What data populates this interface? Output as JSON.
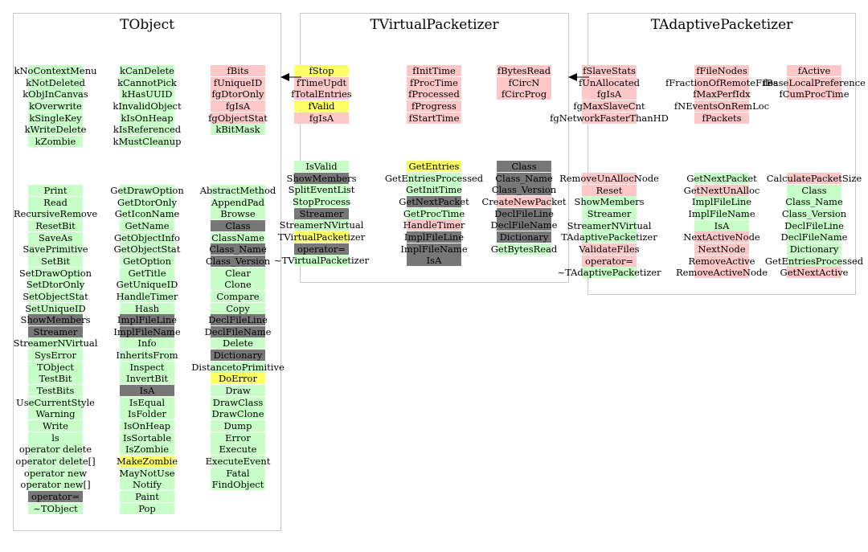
{
  "colors": {
    "fill-data": "#ffc8c8",
    "fill-enum": "#c8ffc8",
    "fill-highlight": "#ffff66",
    "fill-inherited": "#777777",
    "fill-none": "transparent"
  },
  "panels": [
    {
      "name": "tobject",
      "title": "TObject",
      "groups": [
        {
          "columns": [
            [
              {
                "t": "kNoContextMenu",
                "c": "fill-enum"
              },
              {
                "t": "kNotDeleted",
                "c": "fill-enum"
              },
              {
                "t": "kObjInCanvas",
                "c": "fill-enum"
              },
              {
                "t": "kOverwrite",
                "c": "fill-enum"
              },
              {
                "t": "kSingleKey",
                "c": "fill-enum"
              },
              {
                "t": "kWriteDelete",
                "c": "fill-enum"
              },
              {
                "t": "kZombie",
                "c": "fill-enum"
              }
            ],
            [
              {
                "t": "kCanDelete",
                "c": "fill-enum"
              },
              {
                "t": "kCannotPick",
                "c": "fill-enum"
              },
              {
                "t": "kHasUUID",
                "c": "fill-enum"
              },
              {
                "t": "kInvalidObject",
                "c": "fill-enum"
              },
              {
                "t": "kIsOnHeap",
                "c": "fill-enum"
              },
              {
                "t": "kIsReferenced",
                "c": "fill-enum"
              },
              {
                "t": "kMustCleanup",
                "c": "fill-enum"
              }
            ],
            [
              {
                "t": "fBits",
                "c": "fill-data"
              },
              {
                "t": "fUniqueID",
                "c": "fill-data"
              },
              {
                "t": "fgDtorOnly",
                "c": "fill-data"
              },
              {
                "t": "fgIsA",
                "c": "fill-data"
              },
              {
                "t": "fgObjectStat",
                "c": "fill-data"
              },
              {
                "t": "kBitMask",
                "c": "fill-enum"
              }
            ]
          ]
        },
        {
          "columns": [
            [
              {
                "t": "Print",
                "c": "fill-enum"
              },
              {
                "t": "Read",
                "c": "fill-enum"
              },
              {
                "t": "RecursiveRemove",
                "c": "fill-enum"
              },
              {
                "t": "ResetBit",
                "c": "fill-enum"
              },
              {
                "t": "SaveAs",
                "c": "fill-enum"
              },
              {
                "t": "SavePrimitive",
                "c": "fill-enum"
              },
              {
                "t": "SetBit",
                "c": "fill-enum"
              },
              {
                "t": "SetDrawOption",
                "c": "fill-enum"
              },
              {
                "t": "SetDtorOnly",
                "c": "fill-enum"
              },
              {
                "t": "SetObjectStat",
                "c": "fill-enum"
              },
              {
                "t": "SetUniqueID",
                "c": "fill-enum"
              },
              {
                "t": "ShowMembers",
                "c": "fill-inherited"
              },
              {
                "t": "Streamer",
                "c": "fill-inherited"
              },
              {
                "t": "StreamerNVirtual",
                "c": "fill-enum"
              },
              {
                "t": "SysError",
                "c": "fill-enum"
              },
              {
                "t": "TObject",
                "c": "fill-enum"
              },
              {
                "t": "TestBit",
                "c": "fill-enum"
              },
              {
                "t": "TestBits",
                "c": "fill-enum"
              },
              {
                "t": "UseCurrentStyle",
                "c": "fill-enum"
              },
              {
                "t": "Warning",
                "c": "fill-enum"
              },
              {
                "t": "Write",
                "c": "fill-enum"
              },
              {
                "t": "ls",
                "c": "fill-enum"
              },
              {
                "t": "operator delete",
                "c": "fill-enum"
              },
              {
                "t": "operator delete[]",
                "c": "fill-enum"
              },
              {
                "t": "operator new",
                "c": "fill-enum"
              },
              {
                "t": "operator new[]",
                "c": "fill-enum"
              },
              {
                "t": "operator=",
                "c": "fill-inherited"
              },
              {
                "t": "~TObject",
                "c": "fill-enum"
              }
            ],
            [
              {
                "t": "GetDrawOption",
                "c": "fill-enum"
              },
              {
                "t": "GetDtorOnly",
                "c": "fill-enum"
              },
              {
                "t": "GetIconName",
                "c": "fill-enum"
              },
              {
                "t": "GetName",
                "c": "fill-enum"
              },
              {
                "t": "GetObjectInfo",
                "c": "fill-enum"
              },
              {
                "t": "GetObjectStat",
                "c": "fill-enum"
              },
              {
                "t": "GetOption",
                "c": "fill-enum"
              },
              {
                "t": "GetTitle",
                "c": "fill-enum"
              },
              {
                "t": "GetUniqueID",
                "c": "fill-enum"
              },
              {
                "t": "HandleTimer",
                "c": "fill-enum"
              },
              {
                "t": "Hash",
                "c": "fill-enum"
              },
              {
                "t": "ImplFileLine",
                "c": "fill-inherited"
              },
              {
                "t": "ImplFileName",
                "c": "fill-inherited"
              },
              {
                "t": "Info",
                "c": "fill-enum"
              },
              {
                "t": "InheritsFrom",
                "c": "fill-enum"
              },
              {
                "t": "Inspect",
                "c": "fill-enum"
              },
              {
                "t": "InvertBit",
                "c": "fill-enum"
              },
              {
                "t": "IsA",
                "c": "fill-inherited"
              },
              {
                "t": "IsEqual",
                "c": "fill-enum"
              },
              {
                "t": "IsFolder",
                "c": "fill-enum"
              },
              {
                "t": "IsOnHeap",
                "c": "fill-enum"
              },
              {
                "t": "IsSortable",
                "c": "fill-enum"
              },
              {
                "t": "IsZombie",
                "c": "fill-enum"
              },
              {
                "t": "MakeZombie",
                "c": "fill-highlight"
              },
              {
                "t": "MayNotUse",
                "c": "fill-enum"
              },
              {
                "t": "Notify",
                "c": "fill-enum"
              },
              {
                "t": "Paint",
                "c": "fill-enum"
              },
              {
                "t": "Pop",
                "c": "fill-enum"
              }
            ],
            [
              {
                "t": "AbstractMethod",
                "c": "fill-enum"
              },
              {
                "t": "AppendPad",
                "c": "fill-enum"
              },
              {
                "t": "Browse",
                "c": "fill-enum"
              },
              {
                "t": "Class",
                "c": "fill-inherited"
              },
              {
                "t": "ClassName",
                "c": "fill-enum"
              },
              {
                "t": "Class_Name",
                "c": "fill-inherited"
              },
              {
                "t": "Class_Version",
                "c": "fill-inherited"
              },
              {
                "t": "Clear",
                "c": "fill-enum"
              },
              {
                "t": "Clone",
                "c": "fill-enum"
              },
              {
                "t": "Compare",
                "c": "fill-enum"
              },
              {
                "t": "Copy",
                "c": "fill-enum"
              },
              {
                "t": "DeclFileLine",
                "c": "fill-inherited"
              },
              {
                "t": "DeclFileName",
                "c": "fill-inherited"
              },
              {
                "t": "Delete",
                "c": "fill-enum"
              },
              {
                "t": "Dictionary",
                "c": "fill-inherited"
              },
              {
                "t": "DistancetoPrimitive",
                "c": "fill-enum"
              },
              {
                "t": "DoError",
                "c": "fill-highlight"
              },
              {
                "t": "Draw",
                "c": "fill-enum"
              },
              {
                "t": "DrawClass",
                "c": "fill-enum"
              },
              {
                "t": "DrawClone",
                "c": "fill-enum"
              },
              {
                "t": "Dump",
                "c": "fill-enum"
              },
              {
                "t": "Error",
                "c": "fill-enum"
              },
              {
                "t": "Execute",
                "c": "fill-enum"
              },
              {
                "t": "ExecuteEvent",
                "c": "fill-enum"
              },
              {
                "t": "Fatal",
                "c": "fill-enum"
              },
              {
                "t": "FindObject",
                "c": "fill-enum"
              }
            ]
          ]
        }
      ]
    },
    {
      "name": "tvirtualpacketizer",
      "title": "TVirtualPacketizer",
      "groups": [
        {
          "columns": [
            [
              {
                "t": "fStop",
                "c": "fill-highlight"
              },
              {
                "t": "fTimeUpdt",
                "c": "fill-data"
              },
              {
                "t": "fTotalEntries",
                "c": "fill-data"
              },
              {
                "t": "fValid",
                "c": "fill-highlight"
              },
              {
                "t": "fgIsA",
                "c": "fill-data"
              }
            ],
            [
              {
                "t": "fInitTime",
                "c": "fill-data"
              },
              {
                "t": "fProcTime",
                "c": "fill-data"
              },
              {
                "t": "fProcessed",
                "c": "fill-data"
              },
              {
                "t": "fProgress",
                "c": "fill-data"
              },
              {
                "t": "fStartTime",
                "c": "fill-data"
              }
            ],
            [
              {
                "t": "fBytesRead",
                "c": "fill-data"
              },
              {
                "t": "fCircN",
                "c": "fill-data"
              },
              {
                "t": "fCircProg",
                "c": "fill-data"
              }
            ]
          ]
        },
        {
          "columns": [
            [
              {
                "t": "IsValid",
                "c": "fill-enum"
              },
              {
                "t": "ShowMembers",
                "c": "fill-inherited"
              },
              {
                "t": "SplitEventList",
                "c": "fill-enum"
              },
              {
                "t": "StopProcess",
                "c": "fill-enum"
              },
              {
                "t": "Streamer",
                "c": "fill-inherited"
              },
              {
                "t": "StreamerNVirtual",
                "c": "fill-enum"
              },
              {
                "t": "TVirtualPacketizer",
                "c": "fill-highlight"
              },
              {
                "t": "operator=",
                "c": "fill-inherited"
              },
              {
                "t": "~TVirtualPacketizer",
                "c": "fill-enum"
              }
            ],
            [
              {
                "t": "GetEntries",
                "c": "fill-highlight"
              },
              {
                "t": "GetEntriesProcessed",
                "c": "fill-enum"
              },
              {
                "t": "GetInitTime",
                "c": "fill-enum"
              },
              {
                "t": "GetNextPacket",
                "c": "fill-inherited"
              },
              {
                "t": "GetProcTime",
                "c": "fill-enum"
              },
              {
                "t": "HandleTimer",
                "c": "fill-data"
              },
              {
                "t": "ImplFileLine",
                "c": "fill-inherited"
              },
              {
                "t": "ImplFileName",
                "c": "fill-inherited"
              },
              {
                "t": "IsA",
                "c": "fill-inherited"
              }
            ],
            [
              {
                "t": "Class",
                "c": "fill-inherited"
              },
              {
                "t": "Class_Name",
                "c": "fill-inherited"
              },
              {
                "t": "Class_Version",
                "c": "fill-inherited"
              },
              {
                "t": "CreateNewPacket",
                "c": "fill-data"
              },
              {
                "t": "DeclFileLine",
                "c": "fill-inherited"
              },
              {
                "t": "DeclFileName",
                "c": "fill-inherited"
              },
              {
                "t": "Dictionary",
                "c": "fill-inherited"
              },
              {
                "t": "GetBytesRead",
                "c": "fill-enum"
              }
            ]
          ]
        }
      ]
    },
    {
      "name": "tadaptivepacketizer",
      "title": "TAdaptivePacketizer",
      "groups": [
        {
          "columns": [
            [
              {
                "t": "fSlaveStats",
                "c": "fill-data"
              },
              {
                "t": "fUnAllocated",
                "c": "fill-data"
              },
              {
                "t": "fgIsA",
                "c": "fill-data"
              },
              {
                "t": "fgMaxSlaveCnt",
                "c": "fill-data"
              },
              {
                "t": "fgNetworkFasterThanHD",
                "c": "fill-data"
              }
            ],
            [
              {
                "t": "fFileNodes",
                "c": "fill-data"
              },
              {
                "t": "fFractionOfRemoteFiles",
                "c": "fill-data"
              },
              {
                "t": "fMaxPerfIdx",
                "c": "fill-data"
              },
              {
                "t": "fNEventsOnRemLoc",
                "c": "fill-data"
              },
              {
                "t": "fPackets",
                "c": "fill-data"
              }
            ],
            [
              {
                "t": "fActive",
                "c": "fill-data"
              },
              {
                "t": "fBaseLocalPreference",
                "c": "fill-data"
              },
              {
                "t": "fCumProcTime",
                "c": "fill-data"
              }
            ]
          ]
        },
        {
          "columns": [
            [
              {
                "t": "RemoveUnAllocNode",
                "c": "fill-data"
              },
              {
                "t": "Reset",
                "c": "fill-data"
              },
              {
                "t": "ShowMembers",
                "c": "fill-enum"
              },
              {
                "t": "Streamer",
                "c": "fill-enum"
              },
              {
                "t": "StreamerNVirtual",
                "c": "fill-enum"
              },
              {
                "t": "TAdaptivePacketizer",
                "c": "fill-enum"
              },
              {
                "t": "ValidateFiles",
                "c": "fill-data"
              },
              {
                "t": "operator=",
                "c": "fill-data"
              },
              {
                "t": "~TAdaptivePacketizer",
                "c": "fill-enum"
              }
            ],
            [
              {
                "t": "GetNextPacket",
                "c": "fill-enum"
              },
              {
                "t": "GetNextUnAlloc",
                "c": "fill-data"
              },
              {
                "t": "ImplFileLine",
                "c": "fill-enum"
              },
              {
                "t": "ImplFileName",
                "c": "fill-enum"
              },
              {
                "t": "IsA",
                "c": "fill-enum"
              },
              {
                "t": "NextActiveNode",
                "c": "fill-data"
              },
              {
                "t": "NextNode",
                "c": "fill-data"
              },
              {
                "t": "RemoveActive",
                "c": "fill-data"
              },
              {
                "t": "RemoveActiveNode",
                "c": "fill-data"
              }
            ],
            [
              {
                "t": "CalculatePacketSize",
                "c": "fill-data"
              },
              {
                "t": "Class",
                "c": "fill-enum"
              },
              {
                "t": "Class_Name",
                "c": "fill-enum"
              },
              {
                "t": "Class_Version",
                "c": "fill-enum"
              },
              {
                "t": "DeclFileLine",
                "c": "fill-enum"
              },
              {
                "t": "DeclFileName",
                "c": "fill-enum"
              },
              {
                "t": "Dictionary",
                "c": "fill-enum"
              },
              {
                "t": "GetEntriesProcessed",
                "c": "fill-enum"
              },
              {
                "t": "GetNextActive",
                "c": "fill-data"
              }
            ]
          ]
        }
      ]
    }
  ]
}
